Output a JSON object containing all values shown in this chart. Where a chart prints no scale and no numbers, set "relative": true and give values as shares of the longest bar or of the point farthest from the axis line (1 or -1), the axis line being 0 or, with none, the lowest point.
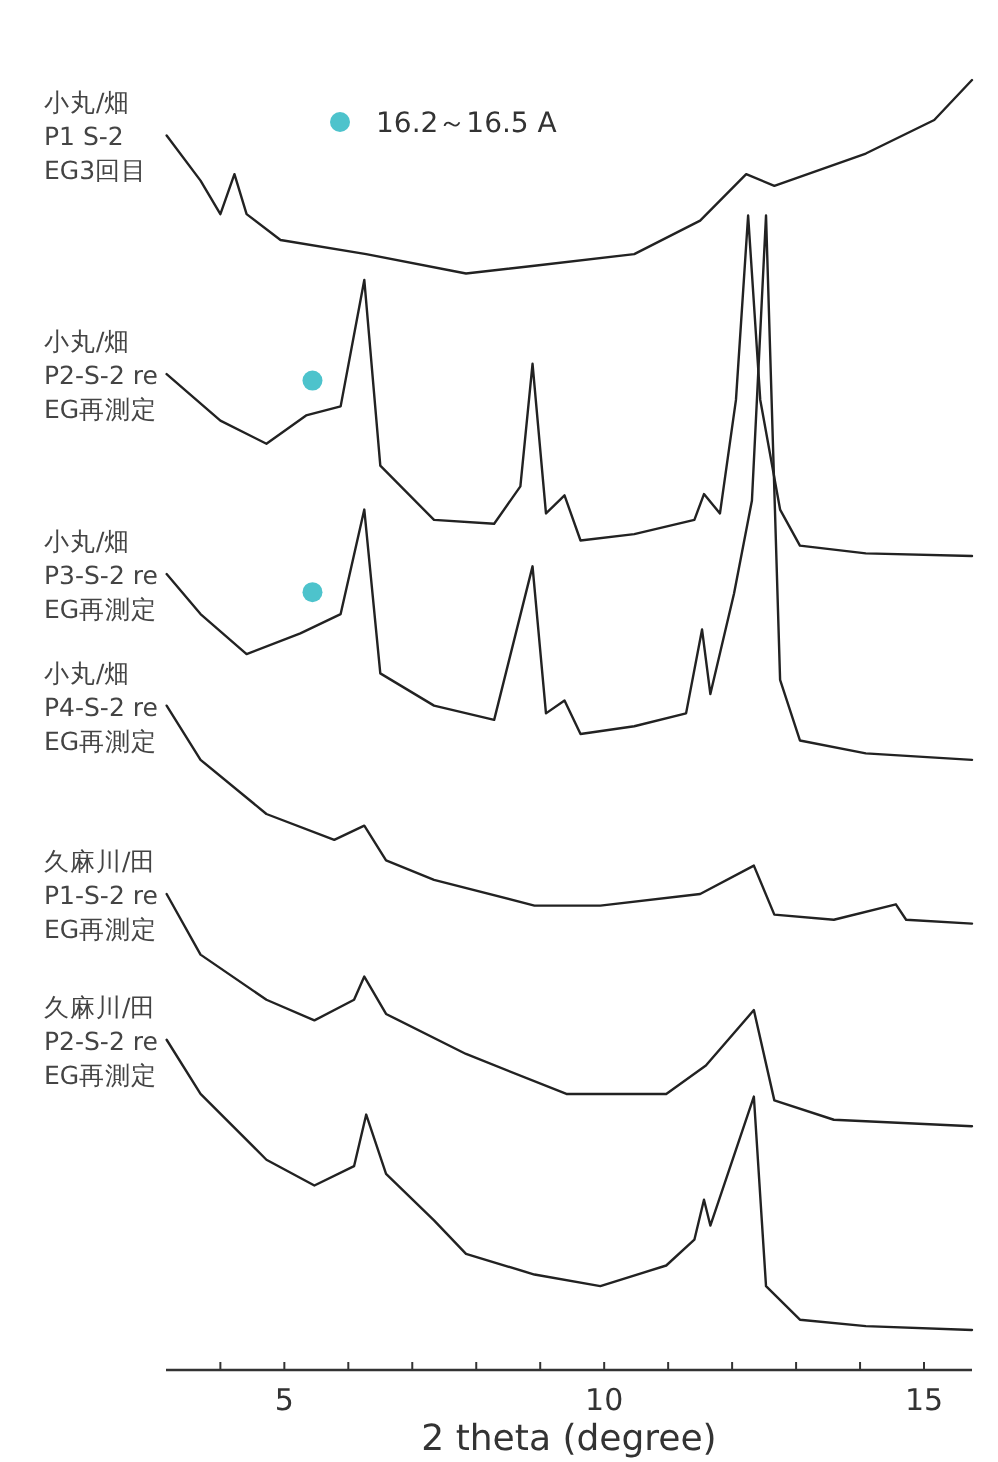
{
  "chart_data": {
    "type": "line",
    "relative": true,
    "xlabel": "2 theta (degree)",
    "xlim": [
      3.15,
      15.75
    ],
    "xticks": [
      {
        "value": 4,
        "label": null
      },
      5,
      {
        "value": 6,
        "label": null
      },
      {
        "value": 7,
        "label": null
      },
      {
        "value": 8,
        "label": null
      },
      {
        "value": 9,
        "label": null
      },
      10,
      {
        "value": 11,
        "label": null
      },
      {
        "value": 12,
        "label": null
      },
      {
        "value": 13,
        "label": null
      },
      {
        "value": 14,
        "label": null
      },
      15
    ],
    "legend": "top",
    "line_style": "solid",
    "series": [
      {
        "name": "小丸/畑\nP1 S-2\nEG3回目",
        "color": "#222222",
        "x": [
          3.16,
          3.69,
          4.0,
          4.22,
          4.41,
          4.94,
          6.28,
          7.84,
          8.91,
          10.47,
          11.5,
          12.22,
          12.66,
          14.09,
          15.16,
          15.75
        ],
        "values": [
          0.957,
          0.922,
          0.896,
          0.927,
          0.896,
          0.876,
          0.865,
          0.85,
          0.856,
          0.865,
          0.891,
          0.927,
          0.918,
          0.943,
          0.969,
          1.0
        ]
      },
      {
        "name": "小丸/畑\nP2-S-2 re\nEG再測定",
        "color": "#222222",
        "x": [
          3.16,
          4.0,
          4.72,
          5.34,
          5.88,
          6.25,
          6.5,
          7.34,
          8.28,
          8.69,
          8.88,
          9.09,
          9.38,
          9.63,
          10.47,
          11.41,
          11.56,
          11.81,
          12.06,
          12.25,
          12.44,
          12.75,
          13.06,
          14.09,
          15.75
        ],
        "values": [
          0.772,
          0.736,
          0.718,
          0.74,
          0.747,
          0.845,
          0.701,
          0.659,
          0.656,
          0.685,
          0.78,
          0.664,
          0.678,
          0.643,
          0.648,
          0.659,
          0.679,
          0.664,
          0.752,
          0.895,
          0.752,
          0.667,
          0.639,
          0.633,
          0.631
        ]
      },
      {
        "name": "小丸/畑\nP3-S-2 re\nEG再測定",
        "color": "#222222",
        "x": [
          3.16,
          3.69,
          4.41,
          5.25,
          5.88,
          6.25,
          6.5,
          7.34,
          8.28,
          8.88,
          9.09,
          9.38,
          9.63,
          10.47,
          11.28,
          11.53,
          11.66,
          12.03,
          12.31,
          12.53,
          12.75,
          13.06,
          14.09,
          15.75
        ],
        "values": [
          0.617,
          0.586,
          0.555,
          0.571,
          0.586,
          0.667,
          0.54,
          0.515,
          0.504,
          0.623,
          0.509,
          0.519,
          0.493,
          0.499,
          0.509,
          0.574,
          0.524,
          0.602,
          0.674,
          0.895,
          0.535,
          0.488,
          0.478,
          0.473
        ]
      },
      {
        "name": "小丸/畑\nP4-S-2 re\nEG再測定",
        "color": "#222222",
        "x": [
          3.16,
          3.69,
          4.72,
          5.78,
          6.25,
          6.59,
          7.34,
          8.91,
          9.94,
          11.5,
          12.34,
          12.66,
          13.59,
          14.56,
          14.72,
          15.75
        ],
        "values": [
          0.515,
          0.473,
          0.431,
          0.411,
          0.422,
          0.395,
          0.38,
          0.36,
          0.36,
          0.369,
          0.391,
          0.353,
          0.349,
          0.361,
          0.349,
          0.346
        ]
      },
      {
        "name": "久麻川/田\nP1-S-2 re\nEG再測定",
        "color": "#222222",
        "x": [
          3.16,
          3.69,
          4.72,
          5.47,
          6.09,
          6.25,
          6.59,
          7.84,
          9.41,
          10.97,
          11.59,
          12.34,
          12.66,
          13.59,
          15.75
        ],
        "values": [
          0.369,
          0.322,
          0.287,
          0.271,
          0.287,
          0.305,
          0.276,
          0.245,
          0.214,
          0.214,
          0.236,
          0.279,
          0.209,
          0.194,
          0.189
        ]
      },
      {
        "name": "久麻川/田\nP2-S-2 re\nEG再測定",
        "color": "#222222",
        "x": [
          3.16,
          3.69,
          4.72,
          5.47,
          6.09,
          6.28,
          6.59,
          7.34,
          7.84,
          8.91,
          9.94,
          10.97,
          11.41,
          11.56,
          11.66,
          12.34,
          12.53,
          13.06,
          14.09,
          15.75
        ],
        "values": [
          0.256,
          0.214,
          0.163,
          0.143,
          0.158,
          0.198,
          0.152,
          0.116,
          0.09,
          0.074,
          0.065,
          0.081,
          0.101,
          0.132,
          0.112,
          0.212,
          0.065,
          0.039,
          0.034,
          0.031
        ]
      },
      {
        "name": "16.2～16.5 A",
        "type": "scatter",
        "marker": "circle",
        "color": "#4dc3cc",
        "x": [
          5.44,
          5.44
        ],
        "values": [
          0.767,
          0.603
        ]
      }
    ]
  }
}
